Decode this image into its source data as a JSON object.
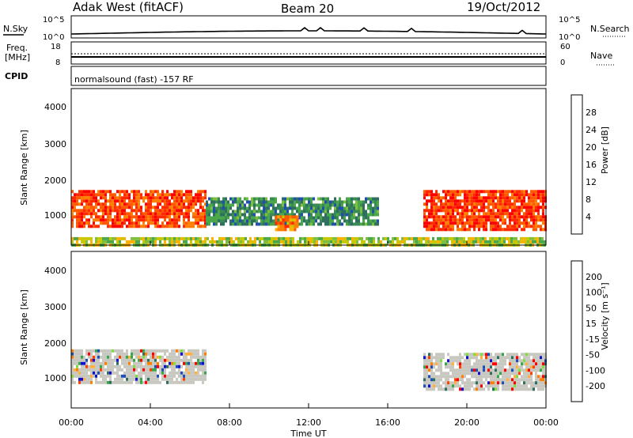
{
  "header": {
    "station": "Adak West (fitACF)",
    "beam": "Beam 20",
    "date": "19/Oct/2012"
  },
  "nsky": {
    "left_label": "N.Sky",
    "left_ticks": [
      "10^5",
      "10^0"
    ],
    "right_label": "N.Search",
    "right_ticks": [
      "10^5",
      "10^0"
    ]
  },
  "freq": {
    "left_label_1": "Freq.",
    "left_label_2": "[MHz]",
    "left_ticks": [
      "18",
      "8"
    ],
    "right_label": "Nave",
    "right_ticks": [
      "60",
      "0"
    ]
  },
  "cpid": {
    "label": "CPID",
    "text": "normalsound (fast) -157 RF"
  },
  "power_panel": {
    "ylabel": "Slant Range [km]",
    "yticks": [
      "4000",
      "3000",
      "2000",
      "1000"
    ],
    "colorbar_label": "Power [dB]",
    "colorbar_ticks": [
      "28",
      "24",
      "20",
      "16",
      "12",
      "8",
      "4"
    ],
    "colors": [
      "#0000ff",
      "#1f4fb5",
      "#2f6f60",
      "#3a8a55",
      "#4aa84a",
      "#7fbf3f",
      "#c8c800",
      "#ffb000",
      "#ff8000",
      "#ff5a00",
      "#ff2a00",
      "#ff0000"
    ]
  },
  "velocity_panel": {
    "ylabel": "Slant Range [km]",
    "yticks": [
      "4000",
      "3000",
      "2000",
      "1000"
    ],
    "colorbar_label": "Velocity [m s⁻¹]",
    "colorbar_ticks": [
      "200",
      "100",
      "50",
      "15",
      "-15",
      "-50",
      "-100",
      "-200"
    ],
    "colors": [
      "#1010d0",
      "#1f4fb5",
      "#2f6f60",
      "#3aa64a",
      "#7fdf3f",
      "#c8c8c0",
      "#ffb040",
      "#ff8000",
      "#ff4000",
      "#ff0000"
    ]
  },
  "time_axis": {
    "label": "Time UT",
    "ticks": [
      "00:00",
      "04:00",
      "08:00",
      "12:00",
      "16:00",
      "20:00",
      "00:00"
    ]
  },
  "chart_data": {
    "type": "heatmap",
    "title": "Adak West (fitACF) Beam 20 19/Oct/2012",
    "xlabel": "Time UT",
    "xlim": [
      0,
      24
    ],
    "ylabel": "Slant Range [km]",
    "ylim": [
      180,
      4500
    ],
    "power_scale_db": [
      0,
      30
    ],
    "velocity_scale": [
      -250,
      250
    ],
    "regions": [
      {
        "panel": "power",
        "t": [
          0,
          6.8
        ],
        "range_km": [
          700,
          1700
        ],
        "value_db": 26
      },
      {
        "panel": "power",
        "t": [
          6.8,
          15.5
        ],
        "range_km": [
          800,
          1500
        ],
        "value_db": 8
      },
      {
        "panel": "power",
        "t": [
          10.3,
          11.5
        ],
        "range_km": [
          600,
          1000
        ],
        "value_db": 22
      },
      {
        "panel": "power",
        "t": [
          17.8,
          24
        ],
        "range_km": [
          600,
          1700
        ],
        "value_db": 27
      },
      {
        "panel": "power",
        "t": [
          0,
          24
        ],
        "range_km": [
          200,
          400
        ],
        "value_db": 15
      },
      {
        "panel": "velocity",
        "t": [
          0,
          6.8
        ],
        "range_km": [
          900,
          1800
        ],
        "value": 0
      },
      {
        "panel": "velocity",
        "t": [
          17.8,
          24
        ],
        "range_km": [
          700,
          1700
        ],
        "value": 0
      }
    ]
  }
}
